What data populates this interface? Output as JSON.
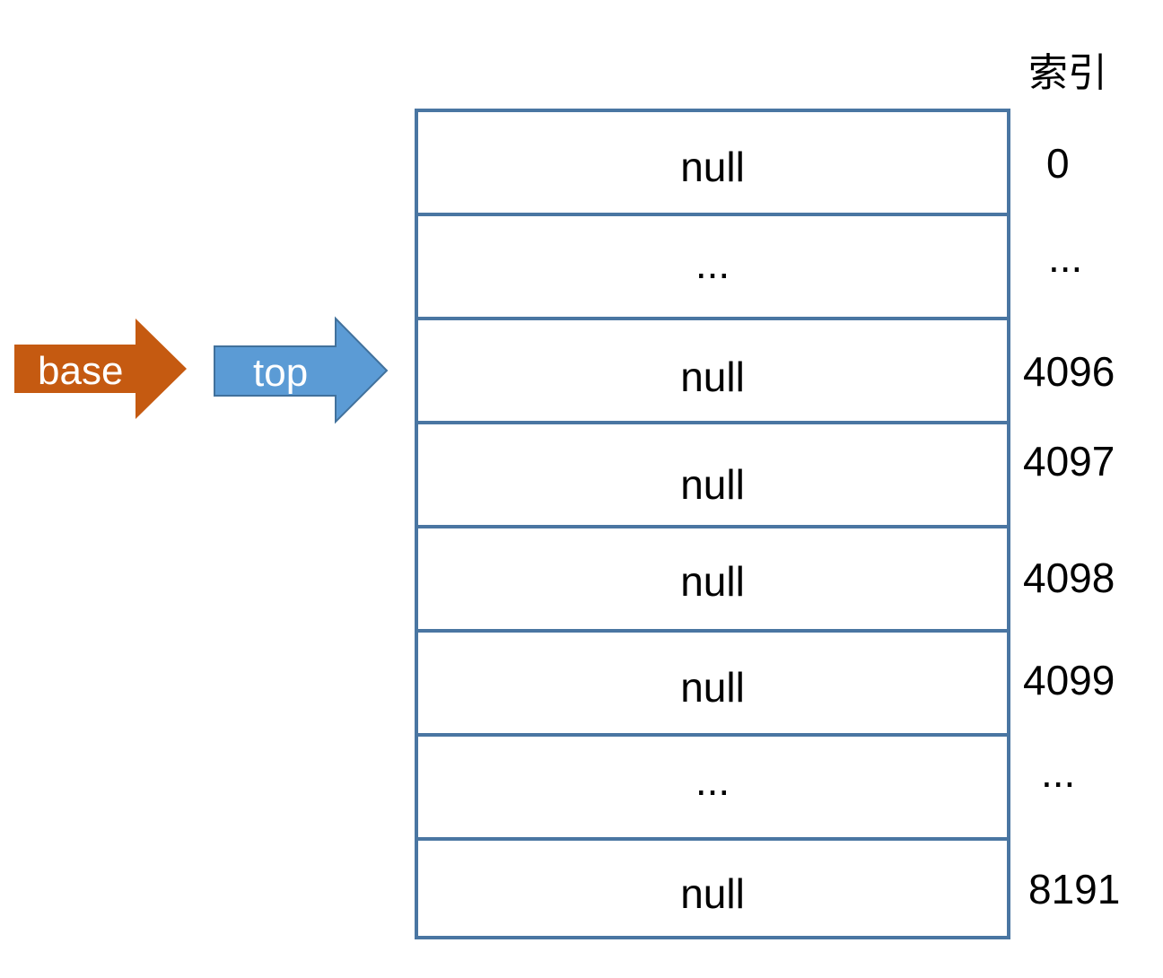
{
  "header": {
    "index_label": "索引"
  },
  "cells": [
    {
      "value": "null"
    },
    {
      "value": "..."
    },
    {
      "value": "null"
    },
    {
      "value": "null"
    },
    {
      "value": "null"
    },
    {
      "value": "null"
    },
    {
      "value": "..."
    },
    {
      "value": "null"
    }
  ],
  "indices": [
    "0",
    "...",
    "4096",
    "4097",
    "4098",
    "4099",
    "...",
    "8191"
  ],
  "pointers": {
    "base": {
      "label": "base",
      "color": "#c55a11"
    },
    "top": {
      "label": "top",
      "color": "#5b9bd5"
    }
  }
}
